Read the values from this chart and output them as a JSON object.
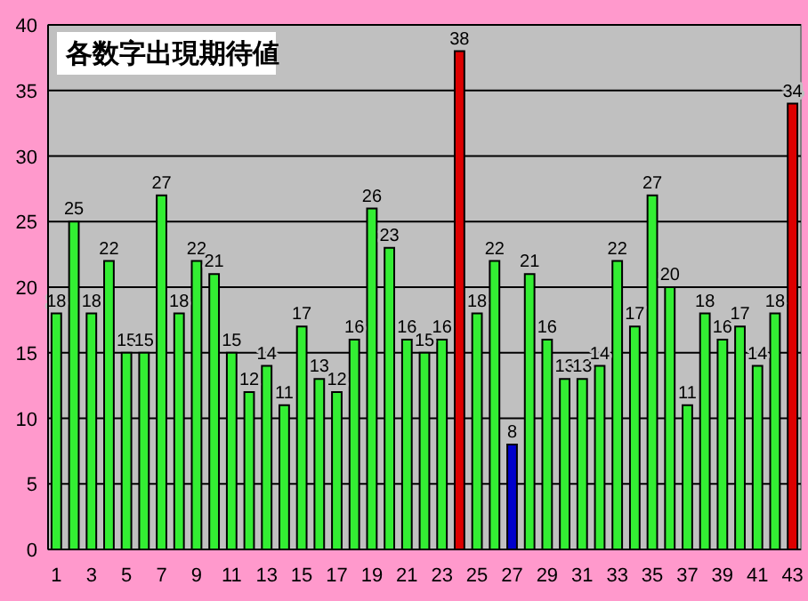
{
  "chart_data": {
    "type": "bar",
    "title": "各数字出現期待値",
    "categories": [
      "1",
      null,
      "3",
      null,
      "5",
      null,
      "7",
      null,
      "9",
      null,
      "11",
      null,
      "13",
      null,
      "15",
      null,
      "17",
      null,
      "19",
      null,
      "21",
      null,
      "23",
      null,
      "25",
      null,
      "27",
      null,
      "29",
      null,
      "31",
      null,
      "33",
      null,
      "35",
      null,
      "37",
      null,
      "39",
      null,
      "41",
      null,
      "43"
    ],
    "values": [
      18,
      25,
      18,
      22,
      15,
      15,
      27,
      18,
      22,
      21,
      15,
      12,
      14,
      11,
      17,
      13,
      12,
      16,
      26,
      23,
      16,
      15,
      16,
      38,
      18,
      22,
      8,
      21,
      16,
      13,
      13,
      14,
      22,
      17,
      27,
      20,
      11,
      18,
      16,
      17,
      14,
      18,
      34
    ],
    "colors": [
      "#33ee33",
      "#33ee33",
      "#33ee33",
      "#33ee33",
      "#33ee33",
      "#33ee33",
      "#33ee33",
      "#33ee33",
      "#33ee33",
      "#33ee33",
      "#33ee33",
      "#33ee33",
      "#33ee33",
      "#33ee33",
      "#33ee33",
      "#33ee33",
      "#33ee33",
      "#33ee33",
      "#33ee33",
      "#33ee33",
      "#33ee33",
      "#33ee33",
      "#33ee33",
      "#dd0000",
      "#33ee33",
      "#33ee33",
      "#0000cc",
      "#33ee33",
      "#33ee33",
      "#33ee33",
      "#33ee33",
      "#33ee33",
      "#33ee33",
      "#33ee33",
      "#33ee33",
      "#33ee33",
      "#33ee33",
      "#33ee33",
      "#33ee33",
      "#33ee33",
      "#33ee33",
      "#33ee33",
      "#dd0000"
    ],
    "ylim": [
      0,
      40
    ],
    "yticks": [
      0,
      5,
      10,
      15,
      20,
      25,
      30,
      35,
      40
    ],
    "grid": "y",
    "data_labels": true
  }
}
